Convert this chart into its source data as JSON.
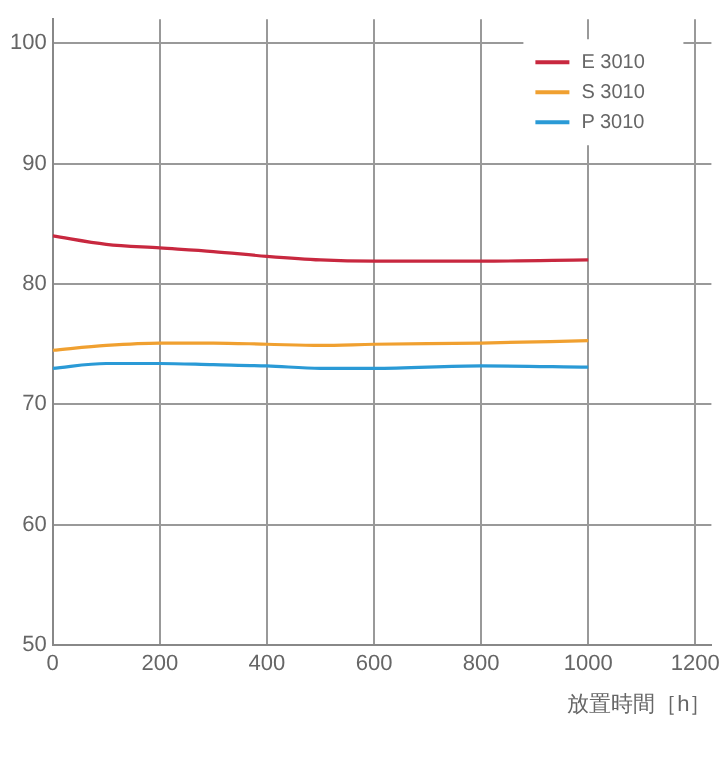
{
  "chart_data": {
    "type": "line",
    "xlabel": "放置時間［h］",
    "xlim": [
      0,
      1230
    ],
    "xticks": [
      0,
      200,
      400,
      600,
      800,
      1000,
      1200
    ],
    "ylim": [
      50,
      102
    ],
    "yticks": [
      50,
      60,
      70,
      80,
      90,
      100
    ],
    "grid": true,
    "legend": "top right",
    "marker": "none",
    "line_style": "solid",
    "series": [
      {
        "name": "E 3010",
        "color": "#c8283f",
        "x": [
          0,
          100,
          200,
          300,
          400,
          500,
          600,
          800,
          1000
        ],
        "values": [
          84,
          83.3,
          83,
          82.7,
          82.3,
          82,
          81.9,
          81.9,
          82
        ]
      },
      {
        "name": "S 3010",
        "color": "#f0a030",
        "x": [
          0,
          100,
          200,
          300,
          400,
          500,
          600,
          800,
          1000
        ],
        "values": [
          74.5,
          74.9,
          75.1,
          75.1,
          75,
          74.9,
          75,
          75.1,
          75.3
        ]
      },
      {
        "name": "P 3010",
        "color": "#2a9ad6",
        "x": [
          0,
          100,
          200,
          300,
          400,
          500,
          600,
          800,
          1000
        ],
        "values": [
          73,
          73.4,
          73.4,
          73.3,
          73.2,
          73,
          73,
          73.2,
          73.1
        ]
      }
    ]
  }
}
